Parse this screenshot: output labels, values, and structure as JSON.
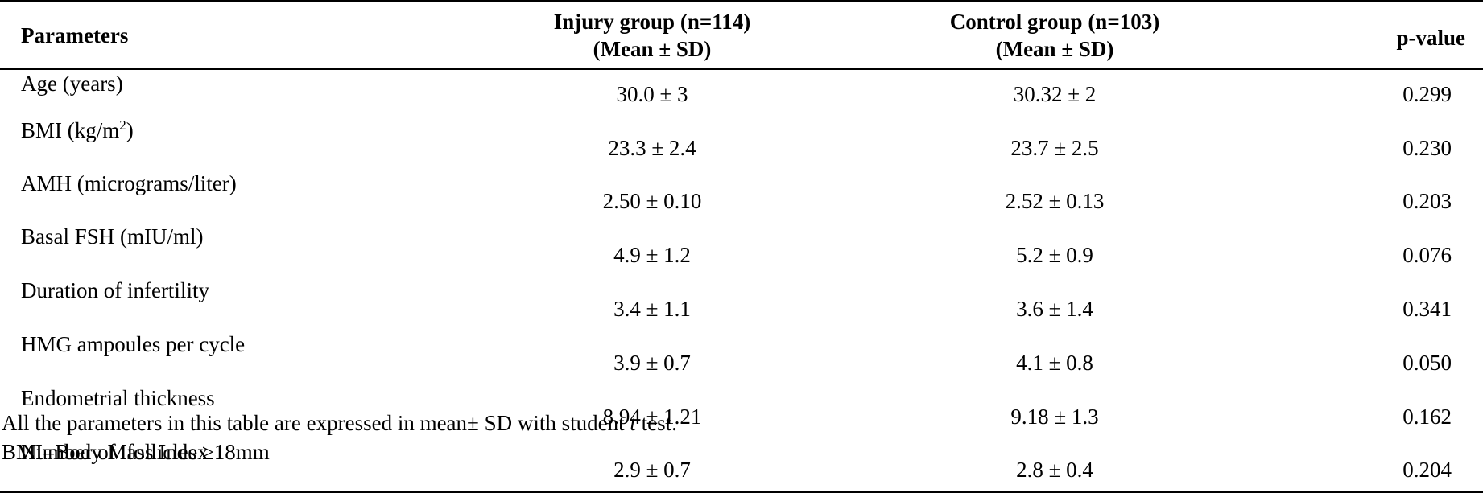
{
  "table": {
    "headers": {
      "parameters": "Parameters",
      "injury": {
        "line1": "Injury group (n=114)",
        "line2": "(Mean ± SD)"
      },
      "control": {
        "line1": "Control group (n=103)",
        "line2": "(Mean ± SD)"
      },
      "pvalue": "p-value"
    },
    "rows": [
      {
        "parameter": "Age (years)",
        "injury": "30.0 ± 3",
        "control": "30.32 ± 2",
        "p": "0.299"
      },
      {
        "parameter": "BMI (kg/m",
        "parameter_sup": "2",
        "parameter_tail": ")",
        "injury": "23.3 ± 2.4",
        "control": "23.7 ± 2.5",
        "p": "0.230"
      },
      {
        "parameter": "AMH (micrograms/liter)",
        "injury": "2.50 ± 0.10",
        "control": "2.52 ± 0.13",
        "p": "0.203"
      },
      {
        "parameter": "Basal FSH (mIU/ml)",
        "injury": "4.9 ± 1.2",
        "control": "5.2 ± 0.9",
        "p": "0.076"
      },
      {
        "parameter": "Duration of infertility",
        "injury": "3.4 ± 1.1",
        "control": "3.6 ± 1.4",
        "p": "0.341"
      },
      {
        "parameter": "HMG ampoules per cycle",
        "injury": "3.9 ± 0.7",
        "control": "4.1 ± 0.8",
        "p": "0.050"
      },
      {
        "parameter": "Endometrial thickness",
        "injury": "8.94 ± 1.21",
        "control": "9.18 ± 1.3",
        "p": "0.162"
      },
      {
        "parameter": "Number of  follicles ≥18mm",
        "injury": "2.9 ± 0.7",
        "control": "2.8 ± 0.4",
        "p": "0.204"
      }
    ]
  },
  "notes": {
    "line1_pre": "All the parameters in this table are expressed in mean± SD with student ",
    "line1_ital": "t",
    "line1_post": " test.",
    "line2": "BMI=Body Mass Index"
  }
}
